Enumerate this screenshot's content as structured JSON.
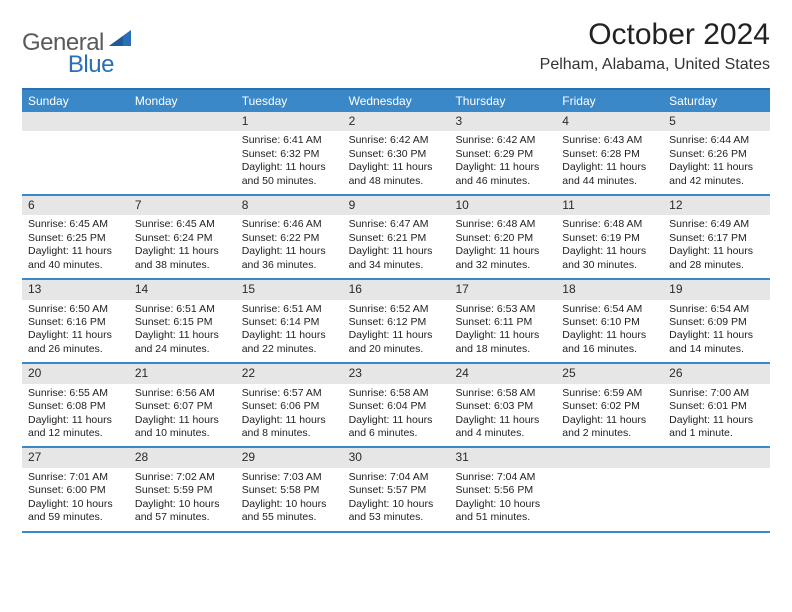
{
  "brand": {
    "part1": "General",
    "part2": "Blue",
    "triangle_color": "#2a6fb5"
  },
  "title": "October 2024",
  "location": "Pelham, Alabama, United States",
  "colors": {
    "header_bg": "#3b88c8",
    "header_border": "#2a6fb5",
    "week_divider": "#3b88c8",
    "daynum_bg": "#e6e6e6"
  },
  "dow": [
    "Sunday",
    "Monday",
    "Tuesday",
    "Wednesday",
    "Thursday",
    "Friday",
    "Saturday"
  ],
  "weeks": [
    [
      null,
      null,
      {
        "n": "1",
        "sunrise": "6:41 AM",
        "sunset": "6:32 PM",
        "daylight": "11 hours and 50 minutes."
      },
      {
        "n": "2",
        "sunrise": "6:42 AM",
        "sunset": "6:30 PM",
        "daylight": "11 hours and 48 minutes."
      },
      {
        "n": "3",
        "sunrise": "6:42 AM",
        "sunset": "6:29 PM",
        "daylight": "11 hours and 46 minutes."
      },
      {
        "n": "4",
        "sunrise": "6:43 AM",
        "sunset": "6:28 PM",
        "daylight": "11 hours and 44 minutes."
      },
      {
        "n": "5",
        "sunrise": "6:44 AM",
        "sunset": "6:26 PM",
        "daylight": "11 hours and 42 minutes."
      }
    ],
    [
      {
        "n": "6",
        "sunrise": "6:45 AM",
        "sunset": "6:25 PM",
        "daylight": "11 hours and 40 minutes."
      },
      {
        "n": "7",
        "sunrise": "6:45 AM",
        "sunset": "6:24 PM",
        "daylight": "11 hours and 38 minutes."
      },
      {
        "n": "8",
        "sunrise": "6:46 AM",
        "sunset": "6:22 PM",
        "daylight": "11 hours and 36 minutes."
      },
      {
        "n": "9",
        "sunrise": "6:47 AM",
        "sunset": "6:21 PM",
        "daylight": "11 hours and 34 minutes."
      },
      {
        "n": "10",
        "sunrise": "6:48 AM",
        "sunset": "6:20 PM",
        "daylight": "11 hours and 32 minutes."
      },
      {
        "n": "11",
        "sunrise": "6:48 AM",
        "sunset": "6:19 PM",
        "daylight": "11 hours and 30 minutes."
      },
      {
        "n": "12",
        "sunrise": "6:49 AM",
        "sunset": "6:17 PM",
        "daylight": "11 hours and 28 minutes."
      }
    ],
    [
      {
        "n": "13",
        "sunrise": "6:50 AM",
        "sunset": "6:16 PM",
        "daylight": "11 hours and 26 minutes."
      },
      {
        "n": "14",
        "sunrise": "6:51 AM",
        "sunset": "6:15 PM",
        "daylight": "11 hours and 24 minutes."
      },
      {
        "n": "15",
        "sunrise": "6:51 AM",
        "sunset": "6:14 PM",
        "daylight": "11 hours and 22 minutes."
      },
      {
        "n": "16",
        "sunrise": "6:52 AM",
        "sunset": "6:12 PM",
        "daylight": "11 hours and 20 minutes."
      },
      {
        "n": "17",
        "sunrise": "6:53 AM",
        "sunset": "6:11 PM",
        "daylight": "11 hours and 18 minutes."
      },
      {
        "n": "18",
        "sunrise": "6:54 AM",
        "sunset": "6:10 PM",
        "daylight": "11 hours and 16 minutes."
      },
      {
        "n": "19",
        "sunrise": "6:54 AM",
        "sunset": "6:09 PM",
        "daylight": "11 hours and 14 minutes."
      }
    ],
    [
      {
        "n": "20",
        "sunrise": "6:55 AM",
        "sunset": "6:08 PM",
        "daylight": "11 hours and 12 minutes."
      },
      {
        "n": "21",
        "sunrise": "6:56 AM",
        "sunset": "6:07 PM",
        "daylight": "11 hours and 10 minutes."
      },
      {
        "n": "22",
        "sunrise": "6:57 AM",
        "sunset": "6:06 PM",
        "daylight": "11 hours and 8 minutes."
      },
      {
        "n": "23",
        "sunrise": "6:58 AM",
        "sunset": "6:04 PM",
        "daylight": "11 hours and 6 minutes."
      },
      {
        "n": "24",
        "sunrise": "6:58 AM",
        "sunset": "6:03 PM",
        "daylight": "11 hours and 4 minutes."
      },
      {
        "n": "25",
        "sunrise": "6:59 AM",
        "sunset": "6:02 PM",
        "daylight": "11 hours and 2 minutes."
      },
      {
        "n": "26",
        "sunrise": "7:00 AM",
        "sunset": "6:01 PM",
        "daylight": "11 hours and 1 minute."
      }
    ],
    [
      {
        "n": "27",
        "sunrise": "7:01 AM",
        "sunset": "6:00 PM",
        "daylight": "10 hours and 59 minutes."
      },
      {
        "n": "28",
        "sunrise": "7:02 AM",
        "sunset": "5:59 PM",
        "daylight": "10 hours and 57 minutes."
      },
      {
        "n": "29",
        "sunrise": "7:03 AM",
        "sunset": "5:58 PM",
        "daylight": "10 hours and 55 minutes."
      },
      {
        "n": "30",
        "sunrise": "7:04 AM",
        "sunset": "5:57 PM",
        "daylight": "10 hours and 53 minutes."
      },
      {
        "n": "31",
        "sunrise": "7:04 AM",
        "sunset": "5:56 PM",
        "daylight": "10 hours and 51 minutes."
      },
      null,
      null
    ]
  ],
  "labels": {
    "sunrise": "Sunrise:",
    "sunset": "Sunset:",
    "daylight": "Daylight:"
  }
}
